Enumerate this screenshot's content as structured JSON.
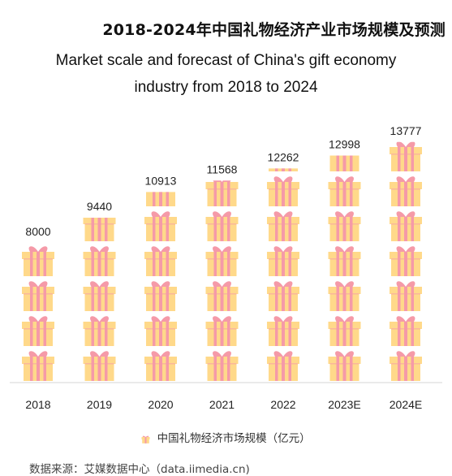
{
  "title_cn": "2018-2024年中国礼物经济产业市场规模及预测",
  "title_en": "Market scale and forecast of China's gift economy industry from 2018 to 2024",
  "legend_label": "中国礼物经济市场规模（亿元）",
  "source": "数据来源：艾媒数据中心（data.iimedia.cn)",
  "colors": {
    "box": "#ffd98a",
    "ribbon": "#f59aa8",
    "axis": "#d6d6d6"
  },
  "chart_data": {
    "type": "bar",
    "categories": [
      "2018",
      "2019",
      "2020",
      "2021",
      "2022",
      "2023E",
      "2024E"
    ],
    "series": [
      {
        "name": "中国礼物经济市场规模（亿元）",
        "values": [
          8000,
          9440,
          10913,
          11568,
          12262,
          12998,
          13777
        ]
      }
    ],
    "ylim": [
      0,
      14000
    ],
    "grid": false,
    "legend_position": "bottom"
  }
}
